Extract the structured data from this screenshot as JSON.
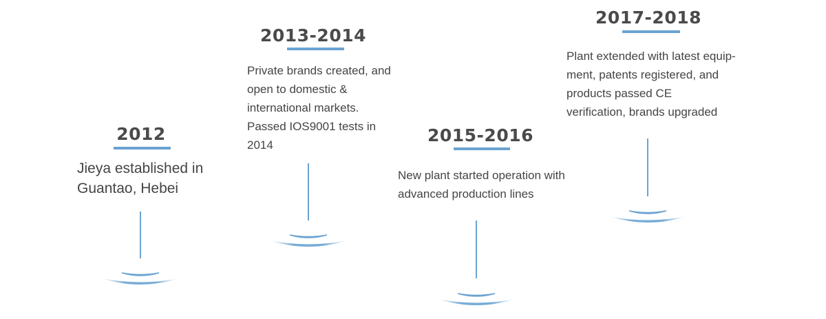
{
  "accent_color": "#6aa3d2",
  "milestones": [
    {
      "year": "2012",
      "lines": [
        "Jieya established in",
        "Guantao, Hebei"
      ]
    },
    {
      "year": "2013-2014",
      "lines": [
        "Private brands created, and",
        "open to domestic &",
        "international markets.",
        "Passed IOS9001 tests in",
        "2014"
      ]
    },
    {
      "year": "2015-2016",
      "lines": [
        "New plant started operation with",
        "advanced production lines"
      ]
    },
    {
      "year": "2017-2018",
      "lines": [
        "Plant extended with latest equip-",
        "ment, patents registered, and",
        "products passed CE",
        "verification, brands upgraded"
      ]
    }
  ]
}
